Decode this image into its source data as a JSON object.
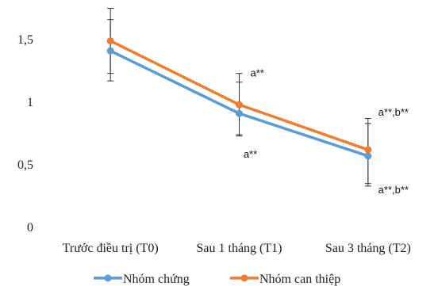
{
  "chart_data": {
    "type": "line",
    "categories": [
      "Trước điều trị (T0)",
      "Sau 1 tháng (T1)",
      "Sau 3 tháng (T2)"
    ],
    "ylim": [
      0,
      1.8
    ],
    "yticks": [
      {
        "value": 0,
        "label": "0"
      },
      {
        "value": 0.5,
        "label": "0,5"
      },
      {
        "value": 1,
        "label": "1"
      },
      {
        "value": 1.5,
        "label": "1,5"
      }
    ],
    "grid": false,
    "legend_position": "bottom",
    "series": [
      {
        "name": "Nhóm chứng",
        "color": "#5B9BD5",
        "values": [
          1.41,
          0.91,
          0.57
        ],
        "err_low": [
          1.17,
          0.73,
          0.35
        ],
        "err_high": [
          1.66,
          1.16,
          0.83
        ]
      },
      {
        "name": "Nhóm can thiệp",
        "color": "#ED7D31",
        "values": [
          1.49,
          0.98,
          0.62
        ],
        "err_low": [
          1.23,
          0.74,
          0.33
        ],
        "err_high": [
          1.75,
          1.23,
          0.87
        ]
      }
    ],
    "annotations": [
      {
        "text": "a**",
        "series": 1,
        "index": 1,
        "pos": "above"
      },
      {
        "text": "a**",
        "series": 0,
        "index": 1,
        "pos": "below"
      },
      {
        "text": "a**,b**",
        "series": 1,
        "index": 2,
        "pos": "above"
      },
      {
        "text": "a**,b**",
        "series": 0,
        "index": 2,
        "pos": "below"
      }
    ]
  }
}
